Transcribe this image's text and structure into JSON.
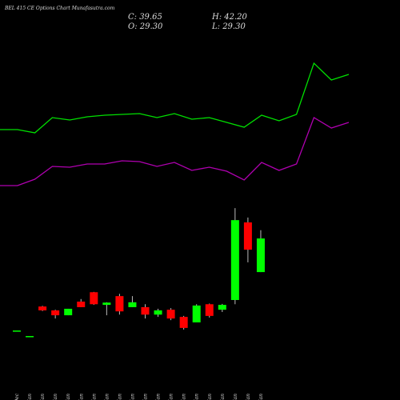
{
  "chart_data": [
    {
      "type": "candlestick",
      "title": "BEL 415 CE Options  Chart Munafasutra.com",
      "ohlc_labels": [
        "C: 39.65",
        "H: 42.20",
        "O: 29.30",
        "L: 29.30"
      ],
      "categories": [
        "31 Dec",
        "01 Jan",
        "03 Jan",
        "06 Jan",
        "07 Jan",
        "08 Jan",
        "09 Jan",
        "10 Jan",
        "13 Jan",
        "14 Jan",
        "15 Jan",
        "16 Jan",
        "17 Jan",
        "20 Jan",
        "21 Jan",
        "22 Jan",
        "23 Jan",
        "27 Jan",
        "28 Jan",
        "29 Jan"
      ],
      "open": [
        11.3,
        9.6,
        18.7,
        17.5,
        16.0,
        20.2,
        23.1,
        19.2,
        21.9,
        18.5,
        18.5,
        16.2,
        17.7,
        15.5,
        13.8,
        19.4,
        17.7,
        20.7,
        44.6,
        29.3
      ],
      "high": [
        11.3,
        9.6,
        18.9,
        17.7,
        18.0,
        21.0,
        23.2,
        20.0,
        22.6,
        21.9,
        19.4,
        18.0,
        18.2,
        15.8,
        19.4,
        19.6,
        19.5,
        49.0,
        46.1,
        42.2
      ],
      "low": [
        11.3,
        9.6,
        17.3,
        15.0,
        16.0,
        18.5,
        19.2,
        16.0,
        16.2,
        18.5,
        15.0,
        15.5,
        14.5,
        11.6,
        13.8,
        15.3,
        17.0,
        19.4,
        32.3,
        29.3
      ],
      "close": [
        11.3,
        9.6,
        17.5,
        16.0,
        18.0,
        18.5,
        19.4,
        19.9,
        17.2,
        20.0,
        16.2,
        17.5,
        15.0,
        12.1,
        19.0,
        15.8,
        19.2,
        45.3,
        36.2,
        39.65
      ],
      "up_color": "#00ff00",
      "down_color": "#ff0000",
      "ylim": [
        -10.1,
        113.1
      ]
    },
    {
      "type": "line",
      "x": [
        0,
        1,
        2,
        3,
        4,
        5,
        6,
        7,
        8,
        9,
        10,
        11,
        12,
        13,
        14,
        15,
        16,
        17,
        18,
        19,
        20
      ],
      "xlim": [
        0,
        20
      ],
      "ylim": [
        0,
        100
      ],
      "series": [
        {
          "color": "#00e000",
          "values": [
            67.6,
            67.6,
            66.8,
            70.6,
            70,
            70.8,
            71.2,
            71.4,
            71.6,
            70.6,
            71.6,
            70.2,
            70.6,
            69.4,
            68.2,
            71.2,
            69.8,
            71.4,
            84.2,
            80,
            81.4
          ]
        },
        {
          "color": "#b000b0",
          "values": [
            53.6,
            53.6,
            55.2,
            58.4,
            58.2,
            59,
            59,
            59.8,
            59.6,
            58.4,
            59.4,
            57.4,
            58.2,
            57.2,
            55,
            59.4,
            57.4,
            59,
            70.6,
            68,
            69.4
          ]
        }
      ]
    }
  ]
}
